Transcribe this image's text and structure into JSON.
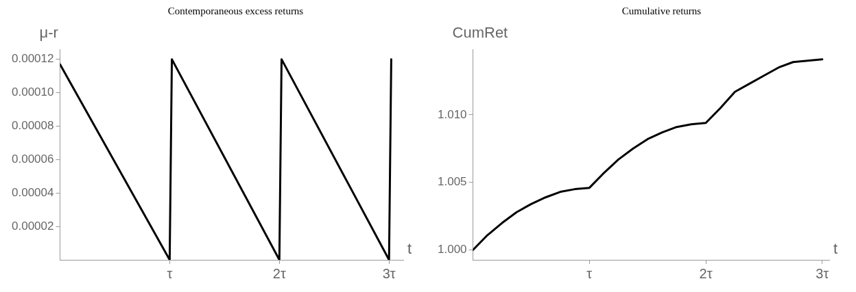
{
  "chart_data": [
    {
      "type": "line",
      "title": "Contemporaneous excess returns",
      "xlabel": "t",
      "ylabel": "μ-r",
      "x": [
        0,
        1,
        1.02,
        2,
        2.02,
        3,
        3.02
      ],
      "series": [
        {
          "color": "#000000",
          "values": [
            0.000117,
            0,
            0.00012,
            0,
            0.00012,
            0,
            0.00012
          ]
        }
      ],
      "xlim": [
        0,
        3.13
      ],
      "xticks": [
        {
          "value": 1,
          "label": "τ"
        },
        {
          "value": 2,
          "label": "2τ"
        },
        {
          "value": 3,
          "label": "3τ"
        }
      ],
      "ylim": [
        0,
        0.000126
      ],
      "yticks": [
        {
          "value": 2e-05,
          "label": "0.00002"
        },
        {
          "value": 4e-05,
          "label": "0.00004"
        },
        {
          "value": 6e-05,
          "label": "0.00006"
        },
        {
          "value": 8e-05,
          "label": "0.00008"
        },
        {
          "value": 0.0001,
          "label": "0.00010"
        },
        {
          "value": 0.00012,
          "label": "0.00012"
        }
      ],
      "grid": false,
      "legend": false,
      "marker": "none",
      "line_style": "solid"
    },
    {
      "type": "line",
      "title": "Cumulative returns",
      "xlabel": "t",
      "ylabel": "CumRet",
      "x": [
        0,
        0.125,
        0.25,
        0.375,
        0.5,
        0.625,
        0.75,
        0.875,
        1,
        1.125,
        1.25,
        1.375,
        1.5,
        1.625,
        1.75,
        1.875,
        2,
        2.125,
        2.25,
        2.375,
        2.5,
        2.625,
        2.75,
        2.875,
        3
      ],
      "series": [
        {
          "color": "#000000",
          "values": [
            1.0,
            1.0011,
            1.002,
            1.0028,
            1.0034,
            1.0039,
            1.0043,
            1.0045,
            1.0046,
            1.0057,
            1.0067,
            1.0075,
            1.0082,
            1.0087,
            1.0091,
            1.0093,
            1.0094,
            1.0105,
            1.0117,
            1.0123,
            1.0129,
            1.0135,
            1.0139,
            1.014,
            1.0141
          ]
        }
      ],
      "xlim": [
        0,
        3.06
      ],
      "xticks": [
        {
          "value": 1,
          "label": "τ"
        },
        {
          "value": 2,
          "label": "2τ"
        },
        {
          "value": 3,
          "label": "3τ"
        }
      ],
      "ylim": [
        0.99927,
        1.01485
      ],
      "yticks": [
        {
          "value": 1,
          "label": "1.000"
        },
        1.005,
        {
          "value": 1.01,
          "label": "1.010"
        }
      ],
      "grid": false,
      "legend": false,
      "marker": "none",
      "line_style": "solid"
    }
  ]
}
